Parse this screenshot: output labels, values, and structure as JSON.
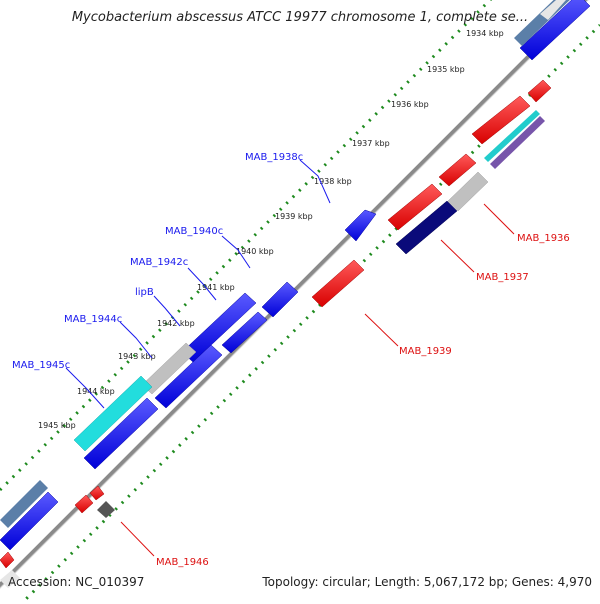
{
  "title": "Mycobacterium abscessus ATCC 19977 chromosome 1, complete se...",
  "footer": {
    "accession": "Accession: NC_010397",
    "summary": "Topology: circular; Length: 5,067,172 bp; Genes: 4,970"
  },
  "colors": {
    "forward_gene": "#1a1aff",
    "reverse_gene": "#ff2020",
    "forward_label": "#1a1aee",
    "reverse_label": "#dd1111",
    "backbone": "#8a8a8a",
    "tick": "#1e8a1e"
  },
  "kbp_ticks": [
    "1934 kbp",
    "1935 kbp",
    "1936 kbp",
    "1937 kbp",
    "1938 kbp",
    "1939 kbp",
    "1940 kbp",
    "1941 kbp",
    "1942 kbp",
    "1943 kbp",
    "1944 kbp",
    "1945 kbp"
  ],
  "gene_labels_forward": [
    "MAB_1938c",
    "MAB_1940c",
    "MAB_1942c",
    "lipB",
    "MAB_1944c",
    "MAB_1945c"
  ],
  "gene_labels_reverse": [
    "MAB_1936",
    "MAB_1937",
    "MAB_1939",
    "MAB_1946"
  ]
}
